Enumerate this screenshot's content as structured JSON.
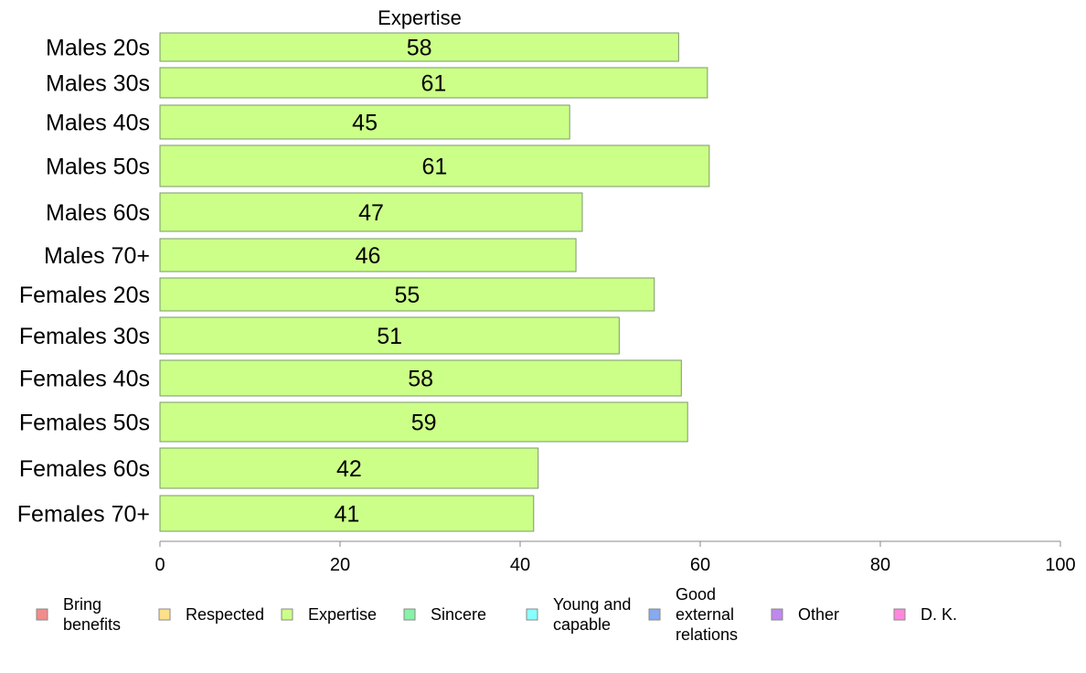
{
  "chart_data": {
    "type": "bar",
    "orientation": "horizontal",
    "title": "Expertise",
    "categories": [
      "Males 20s",
      "Males 30s",
      "Males 40s",
      "Males 50s",
      "Males 60s",
      "Males 70+",
      "Females 20s",
      "Females 30s",
      "Females 40s",
      "Females 50s",
      "Females 60s",
      "Females 70+"
    ],
    "series": [
      {
        "name": "Expertise",
        "color": "#ccff88",
        "values": [
          57.6,
          60.8,
          45.5,
          61.0,
          46.9,
          46.2,
          54.9,
          51.0,
          57.9,
          58.6,
          42.0,
          41.5
        ]
      }
    ],
    "data_labels": [
      "58",
      "61",
      "45",
      "61",
      "47",
      "46",
      "55",
      "51",
      "58",
      "59",
      "42",
      "41"
    ],
    "xlim": [
      0,
      100
    ],
    "xticks": [
      "0",
      "20",
      "40",
      "60",
      "80",
      "100"
    ],
    "xlabel": "",
    "ylabel": "",
    "grid": false,
    "legend": {
      "placement": "bottom",
      "items": [
        {
          "label": [
            "Bring",
            "benefits"
          ],
          "color": "#f28c8c"
        },
        {
          "label": [
            "Respected"
          ],
          "color": "#ffe08a"
        },
        {
          "label": [
            "Expertise"
          ],
          "color": "#ccff88"
        },
        {
          "label": [
            "Sincere"
          ],
          "color": "#88f2a8"
        },
        {
          "label": [
            "Young and",
            "capable"
          ],
          "color": "#88ffff"
        },
        {
          "label": [
            "Good",
            "external",
            "relations"
          ],
          "color": "#88aaee"
        },
        {
          "label": [
            "Other"
          ],
          "color": "#c088ee"
        },
        {
          "label": [
            "D. K."
          ],
          "color": "#ff88dd"
        }
      ]
    }
  }
}
